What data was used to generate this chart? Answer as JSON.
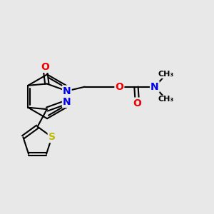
{
  "bg_color": "#e8e8e8",
  "bond_color": "#000000",
  "bond_width": 1.5,
  "atom_colors": {
    "N": "#0000ee",
    "O": "#ee0000",
    "S": "#bbbb00",
    "C": "#000000"
  },
  "font_size_atom": 10,
  "figsize": [
    3.0,
    3.0
  ],
  "dpi": 100
}
